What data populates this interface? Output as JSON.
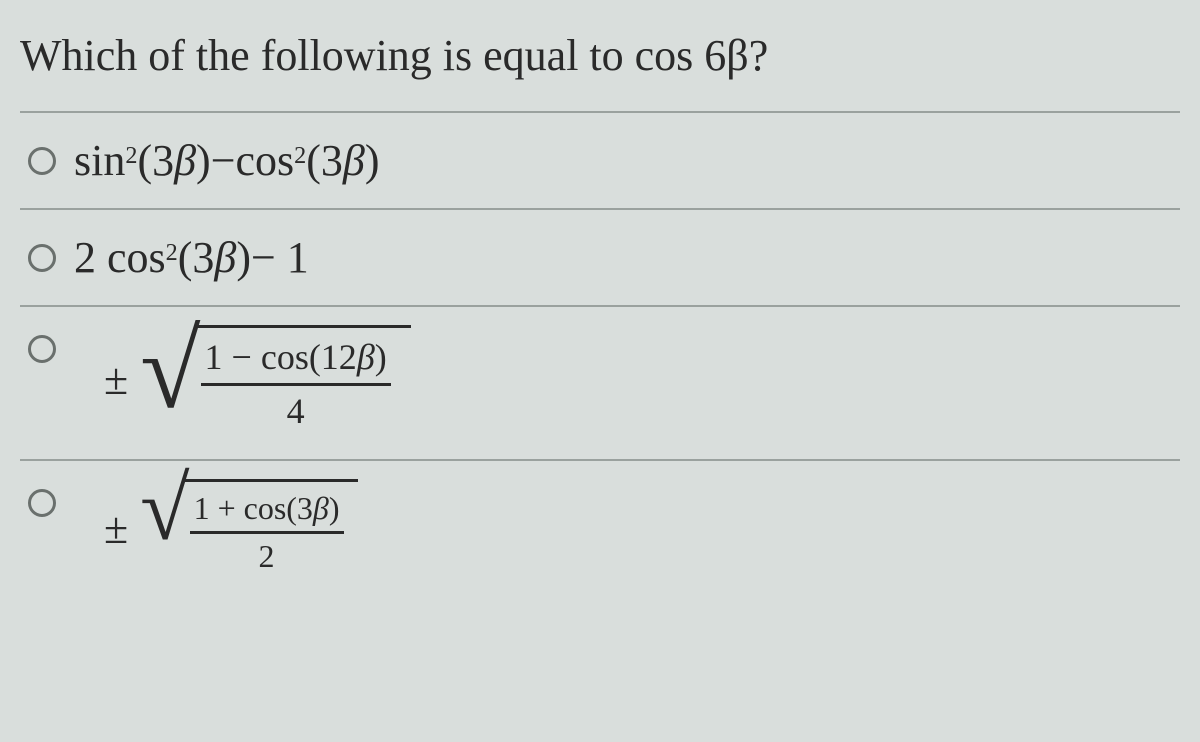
{
  "colors": {
    "background": "#d9dedc",
    "text": "#2a2a2a",
    "divider": "#9aa19e",
    "radio_border": "#6a706d"
  },
  "typography": {
    "body_font": "Georgia / Times serif",
    "math_font": "Cambria Math / Times",
    "question_fontsize_pt": 33,
    "option_fontsize_pt": 33,
    "fraction_fontsize_pt": 27
  },
  "question": {
    "prefix": "Which of the following is equal to ",
    "math_term": "cos 6β",
    "suffix": "?"
  },
  "options": [
    {
      "id": "opt-a",
      "type": "plain",
      "selected": false,
      "latex": "sin^2(3β) − cos^2(3β)",
      "parts": {
        "t1": "sin",
        "e1": "2",
        "arg1_open": " (3",
        "beta1": "β",
        "arg1_close": ")",
        "minus": " − ",
        "t2": "cos",
        "e2": "2",
        "arg2_open": " (3",
        "beta2": "β",
        "arg2_close": ")"
      }
    },
    {
      "id": "opt-b",
      "type": "plain",
      "selected": false,
      "latex": "2 cos^2(3β) − 1",
      "parts": {
        "lead": "2 cos",
        "exp": "2",
        "arg_open": " (3",
        "beta": "β",
        "arg_close": ")",
        "tail": " − 1"
      }
    },
    {
      "id": "opt-c",
      "type": "sqrt_frac",
      "selected": false,
      "latex": "± sqrt((1 − cos(12β)) / 4)",
      "pm": "±",
      "numerator": {
        "pre": "1 − cos(12",
        "beta": "β",
        "post": ")"
      },
      "denominator": "4"
    },
    {
      "id": "opt-d",
      "type": "sqrt_frac",
      "selected": false,
      "latex": "± sqrt((1 + cos(3β)) / 2)",
      "pm": "±",
      "numerator": {
        "pre": "1 + cos(3",
        "beta": "β",
        "post": ")"
      },
      "denominator": "2"
    }
  ]
}
